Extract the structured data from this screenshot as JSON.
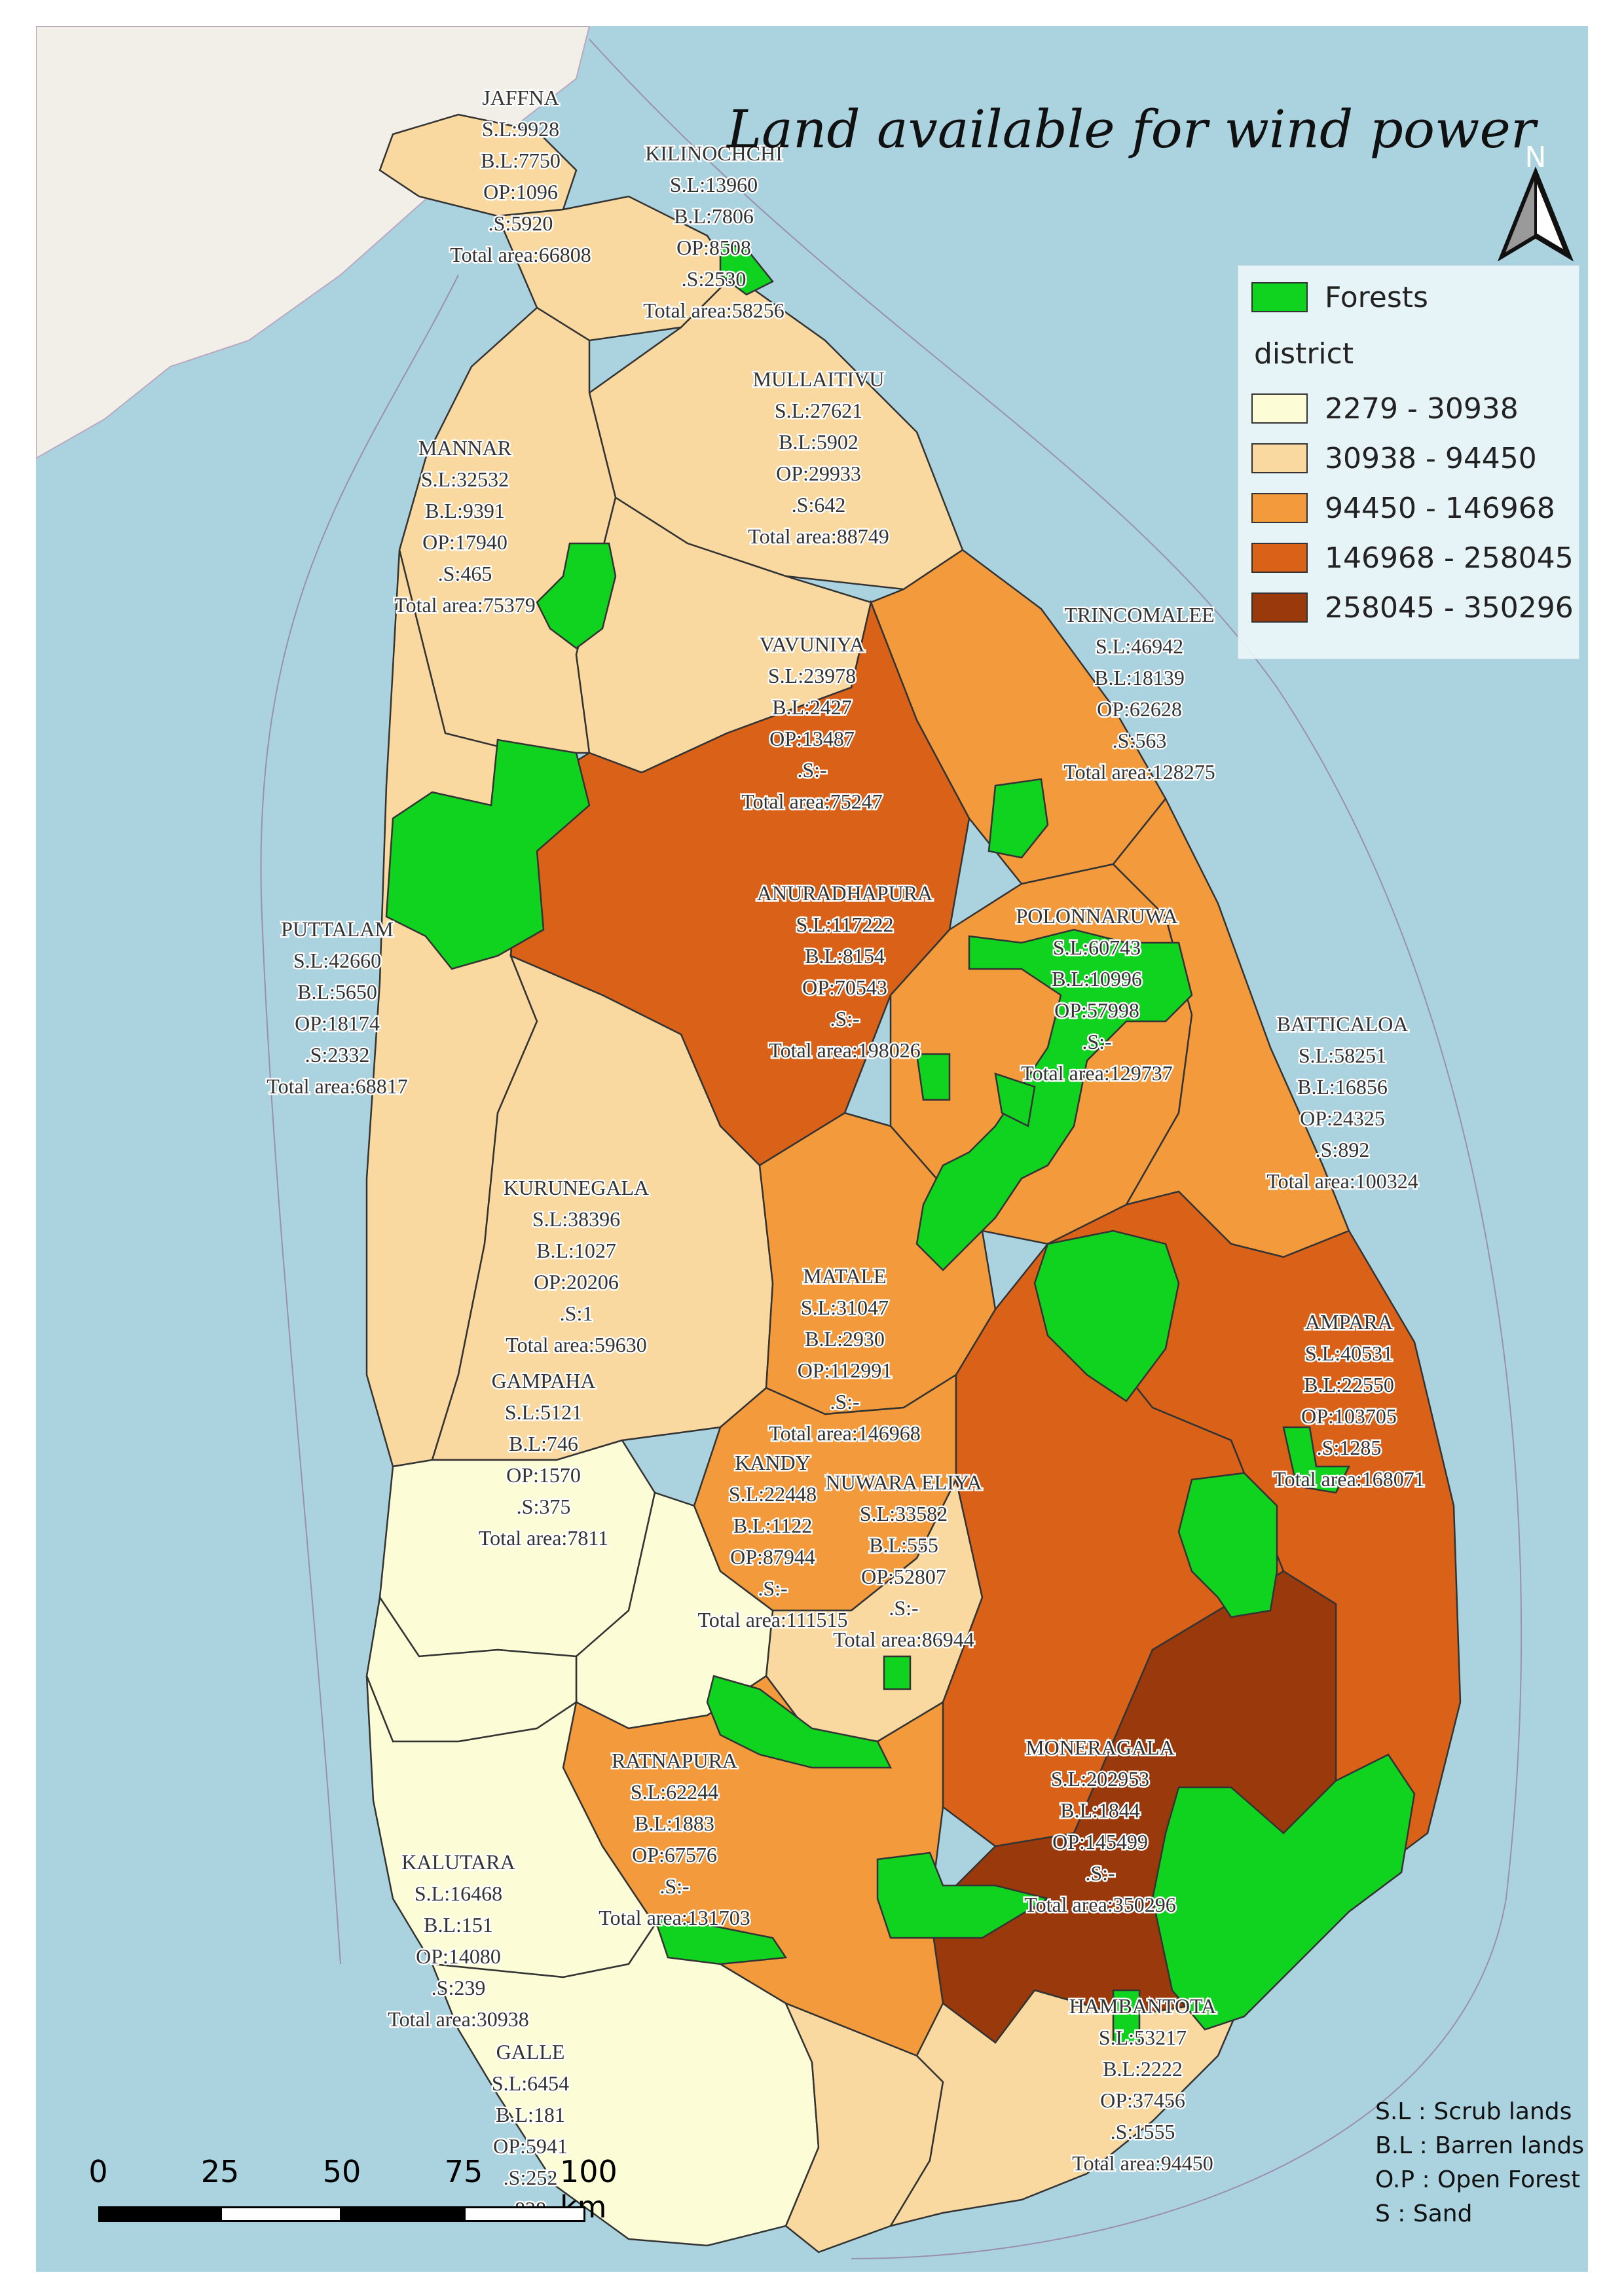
{
  "title": "Land available for wind power",
  "north_arrow": {
    "label": "N"
  },
  "legend": {
    "forest_label": "Forests",
    "group_title": "district",
    "classes": [
      {
        "label": "2279 - 30938",
        "color": "#fcfcd6"
      },
      {
        "label": "30938 - 94450",
        "color": "#f9d9a0"
      },
      {
        "label": "94450 - 146968",
        "color": "#f39b3c"
      },
      {
        "label": "146968 - 258045",
        "color": "#d96218"
      },
      {
        "label": "258045 - 350296",
        "color": "#9a3a0c"
      }
    ],
    "forest_color": "#0fd31f"
  },
  "abbreviations": [
    "S.L : Scrub lands",
    "B.L : Barren lands",
    "O.P : Open Forest",
    "S : Sand"
  ],
  "scale_bar": {
    "labels": [
      "0",
      "25",
      "50",
      "75",
      "100 km"
    ]
  },
  "districts": [
    {
      "name": "JAFFNA",
      "lines": [
        "JAFFNA",
        "S.L:9928",
        "B.L:7750",
        "OP:1096",
        ".S:5920",
        "Total area:66808"
      ]
    },
    {
      "name": "KILINOCHCHI",
      "lines": [
        "KILINOCHCHI",
        "S.L:13960",
        "B.L:7806",
        "OP:8508",
        ".S:2530",
        "Total area:58256"
      ]
    },
    {
      "name": "MULLAITIVU",
      "lines": [
        "MULLAITIVU",
        "S.L:27621",
        "B.L:5902",
        "OP:29933",
        ".S:642",
        "Total area:88749"
      ]
    },
    {
      "name": "MANNAR",
      "lines": [
        "MANNAR",
        "S.L:32532",
        "B.L:9391",
        "OP:17940",
        ".S:465",
        "Total area:75379"
      ]
    },
    {
      "name": "VAVUNIYA",
      "lines": [
        "VAVUNIYA",
        "S.L:23978",
        "B.L:2427",
        "OP:13487",
        ".S:-",
        "Total area:75247"
      ]
    },
    {
      "name": "TRINCOMALEE",
      "lines": [
        "TRINCOMALEE",
        "S.L:46942",
        "B.L:18139",
        "OP:62628",
        ".S:563",
        "Total area:128275"
      ]
    },
    {
      "name": "ANURADHAPURA",
      "lines": [
        "ANURADHAPURA",
        "S.L:117222",
        "B.L:8154",
        "OP:70543",
        ".S:-",
        "Total area:198026"
      ]
    },
    {
      "name": "POLONNARUWA",
      "lines": [
        "POLONNARUWA",
        "S.L:60743",
        "B.L:10996",
        "OP:57998",
        ".S:-",
        "Total area:129737"
      ]
    },
    {
      "name": "PUTTALAM",
      "lines": [
        "PUTTALAM",
        "S.L:42660",
        "B.L:5650",
        "OP:18174",
        ".S:2332",
        "Total area:68817"
      ]
    },
    {
      "name": "BATTICALOA",
      "lines": [
        "BATTICALOA",
        "S.L:58251",
        "B.L:16856",
        "OP:24325",
        ".S:892",
        "Total area:100324"
      ]
    },
    {
      "name": "KURUNEGALA",
      "lines": [
        "KURUNEGALA",
        "S.L:38396",
        "B.L:1027",
        "OP:20206",
        ".S:1",
        "Total area:59630"
      ]
    },
    {
      "name": "MATALE",
      "lines": [
        "MATALE",
        "S.L:31047",
        "B.L:2930",
        "OP:112991",
        ".S:-",
        "Total area:146968"
      ]
    },
    {
      "name": "AMPARA",
      "lines": [
        "AMPARA",
        "S.L:40531",
        "B.L:22550",
        "OP:103705",
        ".S:1285",
        "Total area:168071"
      ]
    },
    {
      "name": "GAMPAHA",
      "lines": [
        "GAMPAHA",
        "S.L:5121",
        "B.L:746",
        "OP:1570",
        ".S:375",
        "Total area:7811"
      ]
    },
    {
      "name": "KANDY",
      "lines": [
        "KANDY",
        "S.L:22448",
        "B.L:1122",
        "OP:87944",
        ".S:-",
        "Total area:111515"
      ]
    },
    {
      "name": "NUWARA ELIYA",
      "lines": [
        "NUWARA ELIYA",
        "S.L:33582",
        "B.L:555",
        "OP:52807",
        ".S:-",
        "Total area:86944"
      ]
    },
    {
      "name": "RATNAPURA",
      "lines": [
        "RATNAPURA",
        "S.L:62244",
        "B.L:1883",
        "OP:67576",
        ".S:-",
        "Total area:131703"
      ]
    },
    {
      "name": "MONERAGALA",
      "lines": [
        "MONERAGALA",
        "S.L:202953",
        "B.L:1844",
        "OP:145499",
        ".S:-",
        "Total area:350296"
      ]
    },
    {
      "name": "KALUTARA",
      "lines": [
        "KALUTARA",
        "S.L:16468",
        "B.L:151",
        "OP:14080",
        ".S:239",
        "Total area:30938"
      ]
    },
    {
      "name": "GALLE",
      "lines": [
        "GALLE",
        "S.L:6454",
        "B.L:181",
        "OP:5941",
        ".S:252",
        "828"
      ]
    },
    {
      "name": "HAMBANTOTA",
      "lines": [
        "HAMBANTOTA",
        "S.L:53217",
        "B.L:2222",
        "OP:37456",
        ".S:1555",
        "Total area:94450"
      ]
    }
  ]
}
